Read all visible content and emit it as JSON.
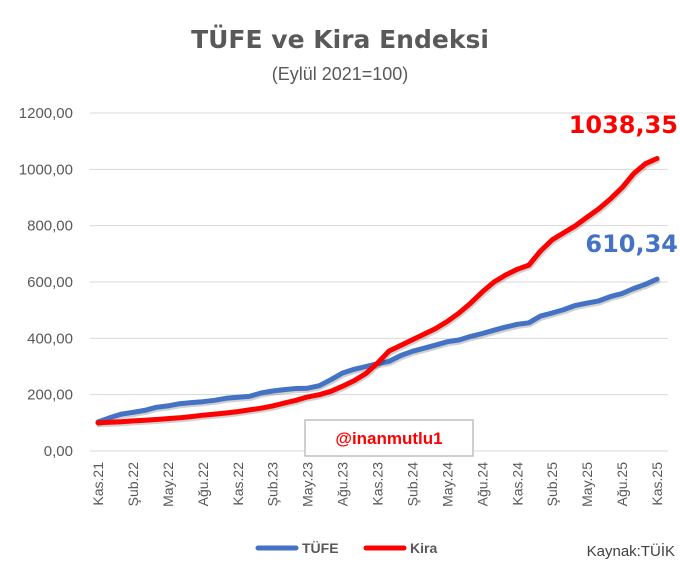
{
  "chart_data": {
    "type": "line",
    "title": "TÜFE ve Kira Endeksi",
    "subtitle": "(Eylül 2021=100)",
    "x_frequency": "monthly",
    "x_first": "Kas.21",
    "x_last": "Kas.25",
    "tick_labels": [
      "Kas.21",
      "Şub.22",
      "May.22",
      "Ağu.22",
      "Kas.22",
      "Şub.23",
      "May.23",
      "Ağu.23",
      "Kas.23",
      "Şub.24",
      "May.24",
      "Ağu.24",
      "Kas.24",
      "Şub.25",
      "May.25",
      "Ağu.25",
      "Kas.25"
    ],
    "y_ticks": [
      "0,00",
      "200,00",
      "400,00",
      "600,00",
      "800,00",
      "1000,00",
      "1200,00"
    ],
    "ylim": [
      0,
      1200
    ],
    "grid": true,
    "legend_placement": "bottom",
    "series": [
      {
        "name": "TÜFE",
        "color": "#4472c4",
        "values": [
          103,
          118,
          131,
          137,
          144,
          155,
          160,
          168,
          172,
          175,
          180,
          187,
          191,
          194,
          206,
          213,
          218,
          222,
          223,
          232,
          253,
          277,
          290,
          300,
          310,
          318,
          339,
          354,
          365,
          376,
          388,
          394,
          407,
          417,
          429,
          440,
          450,
          455,
          479,
          490,
          502,
          517,
          525,
          533,
          548,
          559,
          577,
          592,
          610.34
        ],
        "end_label": "610,34"
      },
      {
        "name": "Kira",
        "color": "#ff0000",
        "values": [
          100,
          102,
          104,
          107,
          109,
          112,
          115,
          118,
          122,
          127,
          131,
          135,
          140,
          146,
          152,
          160,
          170,
          180,
          192,
          200,
          212,
          230,
          250,
          275,
          312,
          355,
          375,
          395,
          415,
          435,
          460,
          490,
          525,
          565,
          600,
          625,
          645,
          660,
          710,
          750,
          775,
          800,
          830,
          860,
          895,
          935,
          985,
          1020,
          1038.35
        ],
        "end_label": "1038,35"
      }
    ],
    "source": "Kaynak:TÜİK",
    "watermark": "@inanmutlu1"
  }
}
